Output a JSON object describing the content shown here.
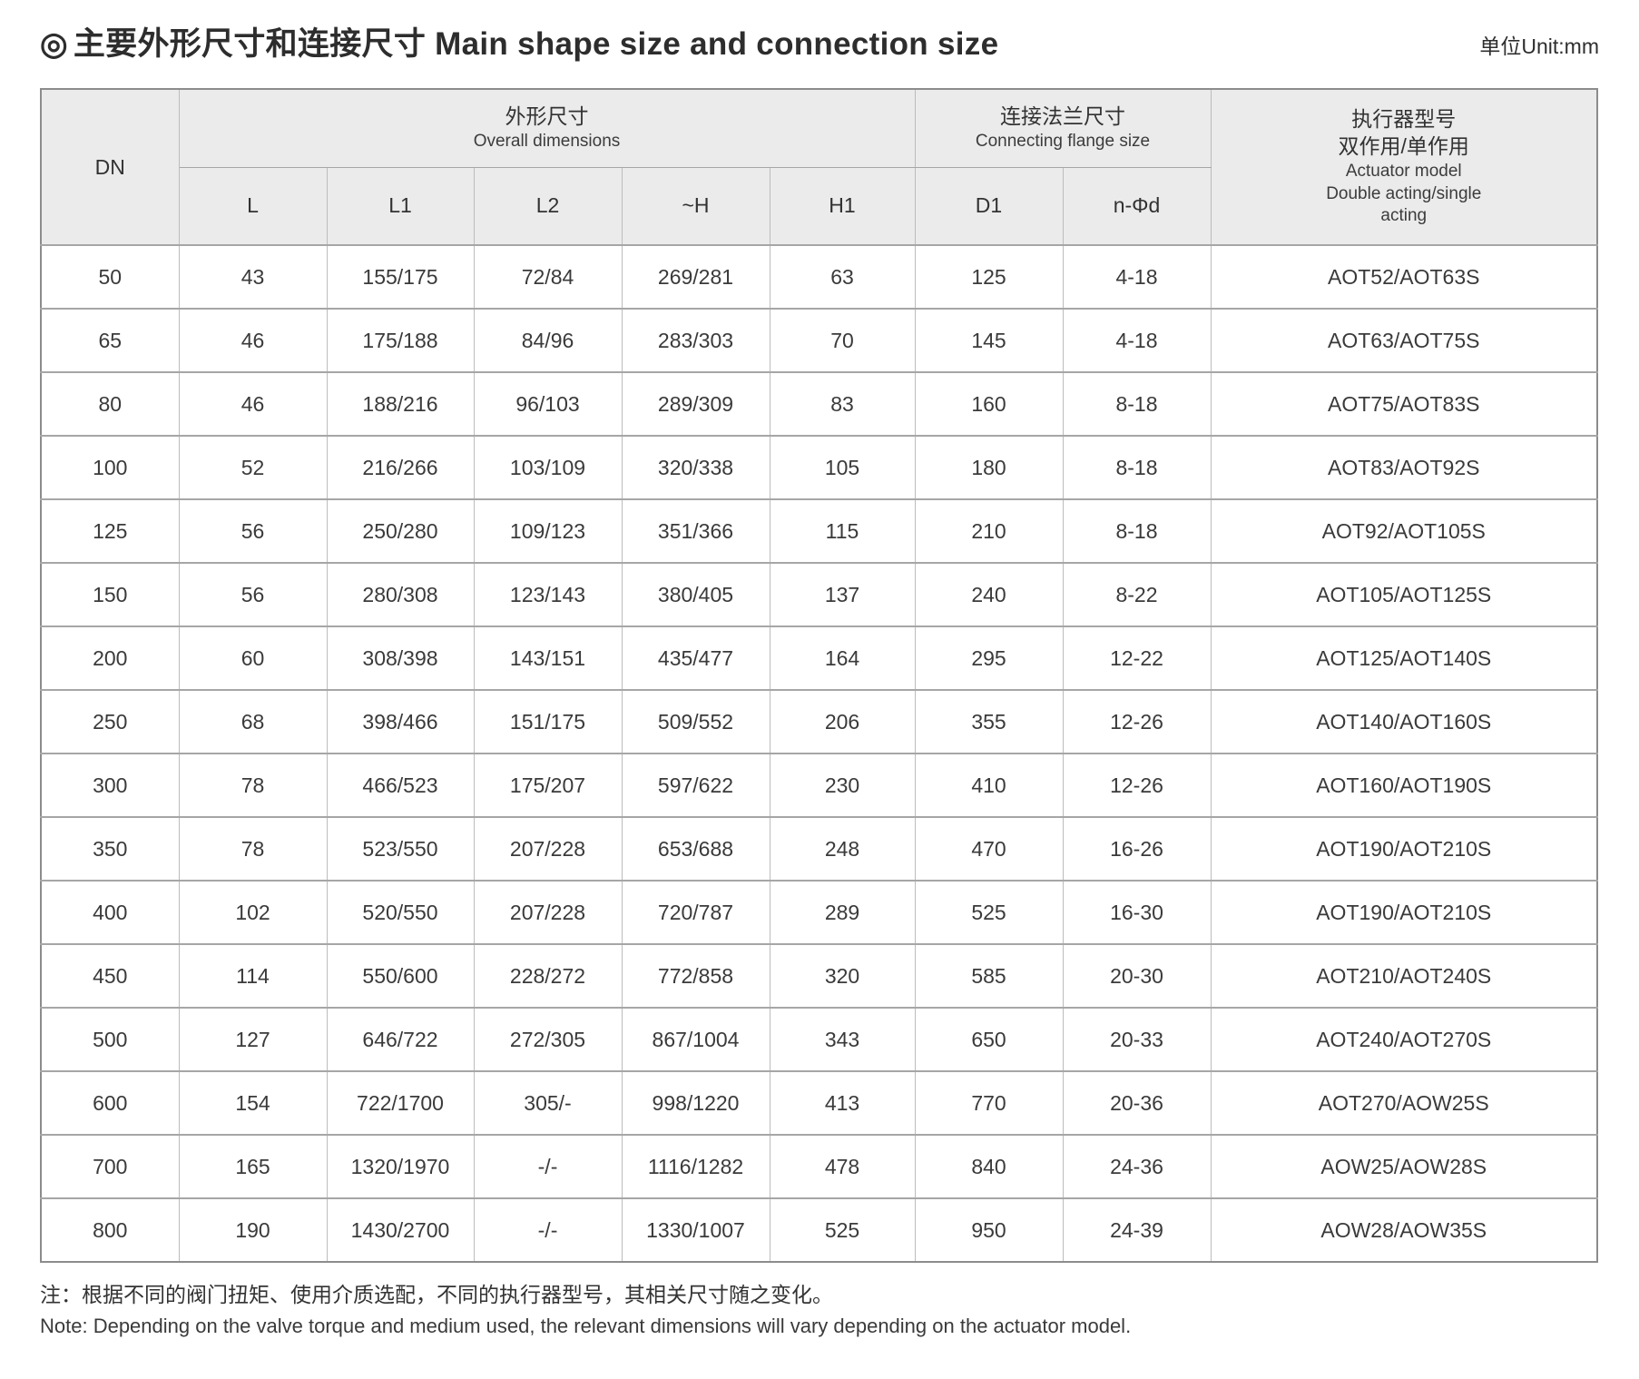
{
  "title": {
    "bullet": "◎",
    "zh": "主要外形尺寸和连接尺寸",
    "en": "Main shape size and connection size",
    "unit": "单位Unit:mm"
  },
  "colors": {
    "header_bg": "#ebebeb",
    "outer_border": "#8c8c8c",
    "inner_border": "#bcbcbc",
    "row_border": "#a6a6a6",
    "text": "#3a3a3a"
  },
  "table": {
    "header": {
      "dn": "DN",
      "overall": {
        "zh": "外形尺寸",
        "en": "Overall dimensions"
      },
      "flange": {
        "zh": "连接法兰尺寸",
        "en": "Connecting flange size"
      },
      "actuator": {
        "zh_line1": "执行器型号",
        "zh_line2": "双作用/单作用",
        "en_line1": "Actuator model",
        "en_line2": "Double acting/single",
        "en_line3": "acting"
      }
    },
    "subheaders": [
      "L",
      "L1",
      "L2",
      "~H",
      "H1",
      "D1",
      "n-Φd"
    ],
    "column_keys": [
      "dn",
      "l",
      "l1",
      "l2",
      "h",
      "h1",
      "d1",
      "n-phi-d",
      "actuator-model"
    ],
    "rows": [
      [
        "50",
        "43",
        "155/175",
        "72/84",
        "269/281",
        "63",
        "125",
        "4-18",
        "AOT52/AOT63S"
      ],
      [
        "65",
        "46",
        "175/188",
        "84/96",
        "283/303",
        "70",
        "145",
        "4-18",
        "AOT63/AOT75S"
      ],
      [
        "80",
        "46",
        "188/216",
        "96/103",
        "289/309",
        "83",
        "160",
        "8-18",
        "AOT75/AOT83S"
      ],
      [
        "100",
        "52",
        "216/266",
        "103/109",
        "320/338",
        "105",
        "180",
        "8-18",
        "AOT83/AOT92S"
      ],
      [
        "125",
        "56",
        "250/280",
        "109/123",
        "351/366",
        "115",
        "210",
        "8-18",
        "AOT92/AOT105S"
      ],
      [
        "150",
        "56",
        "280/308",
        "123/143",
        "380/405",
        "137",
        "240",
        "8-22",
        "AOT105/AOT125S"
      ],
      [
        "200",
        "60",
        "308/398",
        "143/151",
        "435/477",
        "164",
        "295",
        "12-22",
        "AOT125/AOT140S"
      ],
      [
        "250",
        "68",
        "398/466",
        "151/175",
        "509/552",
        "206",
        "355",
        "12-26",
        "AOT140/AOT160S"
      ],
      [
        "300",
        "78",
        "466/523",
        "175/207",
        "597/622",
        "230",
        "410",
        "12-26",
        "AOT160/AOT190S"
      ],
      [
        "350",
        "78",
        "523/550",
        "207/228",
        "653/688",
        "248",
        "470",
        "16-26",
        "AOT190/AOT210S"
      ],
      [
        "400",
        "102",
        "520/550",
        "207/228",
        "720/787",
        "289",
        "525",
        "16-30",
        "AOT190/AOT210S"
      ],
      [
        "450",
        "114",
        "550/600",
        "228/272",
        "772/858",
        "320",
        "585",
        "20-30",
        "AOT210/AOT240S"
      ],
      [
        "500",
        "127",
        "646/722",
        "272/305",
        "867/1004",
        "343",
        "650",
        "20-33",
        "AOT240/AOT270S"
      ],
      [
        "600",
        "154",
        "722/1700",
        "305/-",
        "998/1220",
        "413",
        "770",
        "20-36",
        "AOT270/AOW25S"
      ],
      [
        "700",
        "165",
        "1320/1970",
        "-/-",
        "1116/1282",
        "478",
        "840",
        "24-36",
        "AOW25/AOW28S"
      ],
      [
        "800",
        "190",
        "1430/2700",
        "-/-",
        "1330/1007",
        "525",
        "950",
        "24-39",
        "AOW28/AOW35S"
      ]
    ]
  },
  "notes": {
    "zh": "注：根据不同的阀门扭矩、使用介质选配，不同的执行器型号，其相关尺寸随之变化。",
    "en": "Note: Depending on the valve torque and medium used, the relevant dimensions will vary depending on the actuator model."
  }
}
